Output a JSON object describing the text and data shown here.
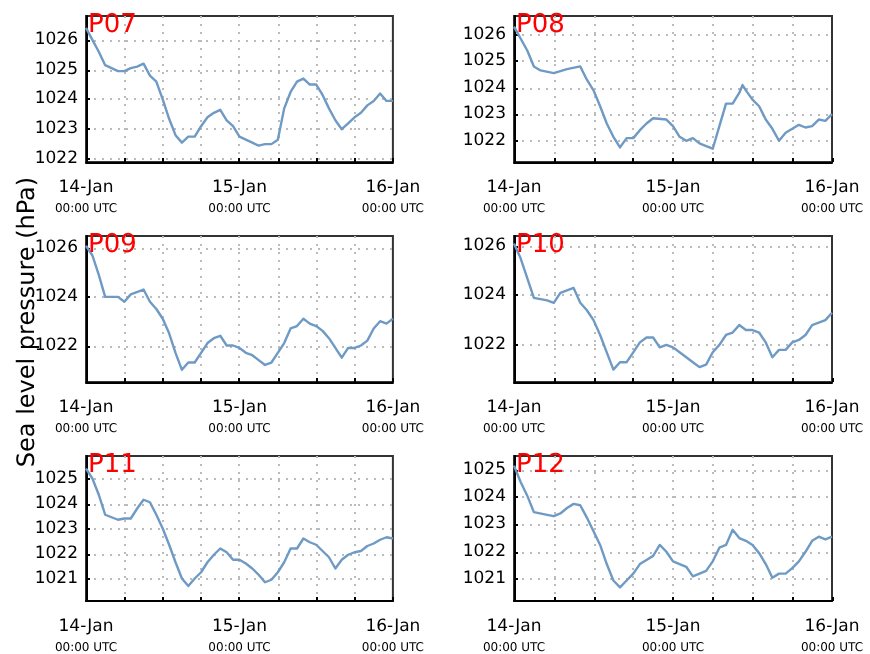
{
  "chart_data": [
    {
      "type": "line",
      "title": "P07",
      "grid": true,
      "line_style": "solid",
      "x": [
        "--01-14T00:00",
        "--01-14T01:00",
        "--01-14T02:00",
        "--01-14T03:00",
        "--01-14T05:00",
        "--01-14T06:00",
        "--01-14T07:00",
        "--01-14T08:00",
        "--01-14T09:00",
        "--01-14T10:00",
        "--01-14T11:00",
        "--01-14T12:00",
        "--01-14T13:00",
        "--01-14T14:00",
        "--01-14T15:00",
        "--01-14T16:00",
        "--01-14T17:00",
        "--01-14T18:00",
        "--01-14T19:00",
        "--01-14T20:00",
        "--01-14T21:00",
        "--01-14T22:00",
        "--01-14T23:00",
        "--01-15T00:00",
        "--01-15T01:00",
        "--01-15T02:00",
        "--01-15T03:00",
        "--01-15T04:00",
        "--01-15T05:00",
        "--01-15T06:00",
        "--01-15T07:00",
        "--01-15T08:00",
        "--01-15T09:00",
        "--01-15T10:00",
        "--01-15T11:00",
        "--01-15T12:00",
        "--01-15T13:00",
        "--01-15T14:00",
        "--01-15T15:00",
        "--01-15T16:00",
        "--01-15T17:00",
        "--01-15T18:00",
        "--01-15T19:00",
        "--01-15T20:00",
        "--01-15T21:00",
        "--01-15T22:00",
        "--01-15T23:00",
        "--01-16T00:00"
      ],
      "series": [
        {
          "color": "#6f9ac4",
          "values": [
            1026.4,
            1026.0,
            1025.6,
            1025.15,
            1024.95,
            1024.95,
            1025.05,
            1025.1,
            1025.2,
            1024.8,
            1024.6,
            1024.0,
            1023.35,
            1022.8,
            1022.55,
            1022.75,
            1022.75,
            1023.1,
            1023.4,
            1023.55,
            1023.65,
            1023.3,
            1023.1,
            1022.75,
            1022.65,
            1022.55,
            1022.45,
            1022.5,
            1022.5,
            1022.65,
            1023.7,
            1024.25,
            1024.6,
            1024.7,
            1024.5,
            1024.5,
            1024.15,
            1023.7,
            1023.3,
            1023.0,
            1023.2,
            1023.4,
            1023.55,
            1023.8,
            1023.95,
            1024.2,
            1023.95,
            1023.95
          ]
        }
      ],
      "xlim": [
        "--01-14T00:00",
        "--01-16T00:00"
      ],
      "xticks": [
        {
          "value": "--01-14T00:00",
          "label": "14-Jan\n00:00 UTC"
        },
        {
          "value": "--01-14T06:00",
          "label": null
        },
        {
          "value": "--01-14T12:00",
          "label": null
        },
        {
          "value": "--01-14T18:00",
          "label": null
        },
        {
          "value": "--01-15T00:00",
          "label": "15-Jan\n00:00 UTC"
        },
        {
          "value": "--01-15T06:00",
          "label": null
        },
        {
          "value": "--01-15T12:00",
          "label": null
        },
        {
          "value": "--01-15T18:00",
          "label": null
        },
        {
          "value": "--01-16T00:00",
          "label": "16-Jan\n00:00 UTC"
        }
      ],
      "ylim": [
        1021.9,
        1026.8
      ],
      "yticks": [
        1022,
        1023,
        1024,
        1025,
        1026
      ]
    },
    {
      "type": "line",
      "title": "P08",
      "grid": true,
      "line_style": "solid",
      "x": [
        "--01-14T00:00",
        "--01-14T02:00",
        "--01-14T03:00",
        "--01-14T04:00",
        "--01-14T06:00",
        "--01-14T08:00",
        "--01-14T10:00",
        "--01-14T11:00",
        "--01-14T12:00",
        "--01-14T13:00",
        "--01-14T14:00",
        "--01-14T15:00",
        "--01-14T16:00",
        "--01-14T17:00",
        "--01-14T18:00",
        "--01-14T19:00",
        "--01-14T20:00",
        "--01-14T21:00",
        "--01-14T23:00",
        "--01-15T00:00",
        "--01-15T01:00",
        "--01-15T02:00",
        "--01-15T03:00",
        "--01-15T04:00",
        "--01-15T05:00",
        "--01-15T06:00",
        "--01-15T07:00",
        "--01-15T08:00",
        "--01-15T09:00",
        "--01-15T10:00",
        "--01-15T10:30",
        "--01-15T11:00",
        "--01-15T12:00",
        "--01-15T13:00",
        "--01-15T14:00",
        "--01-15T15:00",
        "--01-15T16:00",
        "--01-15T17:00",
        "--01-15T18:00",
        "--01-15T19:00",
        "--01-15T20:00",
        "--01-15T21:00",
        "--01-15T22:00",
        "--01-15T23:00",
        "--01-16T00:00"
      ],
      "series": [
        {
          "color": "#6f9ac4",
          "values": [
            1026.3,
            1025.4,
            1024.8,
            1024.65,
            1024.55,
            1024.7,
            1024.8,
            1024.3,
            1023.9,
            1023.3,
            1022.65,
            1022.15,
            1021.75,
            1022.1,
            1022.1,
            1022.4,
            1022.65,
            1022.85,
            1022.8,
            1022.55,
            1022.15,
            1022.0,
            1022.1,
            1021.9,
            1021.8,
            1021.7,
            1022.55,
            1023.4,
            1023.4,
            1023.8,
            1024.1,
            1023.9,
            1023.55,
            1023.3,
            1022.8,
            1022.45,
            1022.0,
            1022.3,
            1022.45,
            1022.6,
            1022.5,
            1022.55,
            1022.8,
            1022.75,
            1023.0
          ]
        }
      ],
      "xlim": [
        "--01-14T00:00",
        "--01-16T00:00"
      ],
      "xticks": [
        {
          "value": "--01-14T00:00",
          "label": "14-Jan\n00:00 UTC"
        },
        {
          "value": "--01-14T06:00",
          "label": null
        },
        {
          "value": "--01-14T12:00",
          "label": null
        },
        {
          "value": "--01-14T18:00",
          "label": null
        },
        {
          "value": "--01-15T00:00",
          "label": "15-Jan\n00:00 UTC"
        },
        {
          "value": "--01-15T06:00",
          "label": null
        },
        {
          "value": "--01-15T12:00",
          "label": null
        },
        {
          "value": "--01-15T18:00",
          "label": null
        },
        {
          "value": "--01-16T00:00",
          "label": "16-Jan\n00:00 UTC"
        }
      ],
      "ylim": [
        1021.2,
        1026.7
      ],
      "yticks": [
        1022,
        1023,
        1024,
        1025,
        1026
      ]
    },
    {
      "type": "line",
      "title": "P09",
      "ylabel": "Sea level pressure (hPa)",
      "grid": true,
      "line_style": "solid",
      "x": [
        "--01-14T00:00",
        "--01-14T01:00",
        "--01-14T02:00",
        "--01-14T03:00",
        "--01-14T05:00",
        "--01-14T06:00",
        "--01-14T07:00",
        "--01-14T09:00",
        "--01-14T10:00",
        "--01-14T11:00",
        "--01-14T12:00",
        "--01-14T13:00",
        "--01-14T14:00",
        "--01-14T15:00",
        "--01-14T16:00",
        "--01-14T17:00",
        "--01-14T18:00",
        "--01-14T19:00",
        "--01-14T20:00",
        "--01-14T21:00",
        "--01-14T22:00",
        "--01-14T23:00",
        "--01-15T00:00",
        "--01-15T01:00",
        "--01-15T02:00",
        "--01-15T03:00",
        "--01-15T04:00",
        "--01-15T05:00",
        "--01-15T06:00",
        "--01-15T07:00",
        "--01-15T08:00",
        "--01-15T09:00",
        "--01-15T10:00",
        "--01-15T11:00",
        "--01-15T12:00",
        "--01-15T13:00",
        "--01-15T14:00",
        "--01-15T15:00",
        "--01-15T16:00",
        "--01-15T17:00",
        "--01-15T18:00",
        "--01-15T19:00",
        "--01-15T20:00",
        "--01-15T21:00",
        "--01-15T22:00",
        "--01-15T23:00",
        "--01-16T00:00"
      ],
      "series": [
        {
          "color": "#6f9ac4",
          "values": [
            1026.1,
            1025.7,
            1024.9,
            1024.0,
            1024.0,
            1023.8,
            1024.1,
            1024.3,
            1023.8,
            1023.5,
            1023.1,
            1022.5,
            1021.7,
            1021.0,
            1021.3,
            1021.3,
            1021.7,
            1022.1,
            1022.3,
            1022.4,
            1022.0,
            1022.0,
            1021.9,
            1021.7,
            1021.6,
            1021.4,
            1021.2,
            1021.3,
            1021.7,
            1022.1,
            1022.7,
            1022.8,
            1023.1,
            1022.9,
            1022.8,
            1022.6,
            1022.3,
            1021.9,
            1021.5,
            1021.9,
            1021.9,
            1022.0,
            1022.2,
            1022.7,
            1023.0,
            1022.9,
            1023.1
          ]
        }
      ],
      "xlim": [
        "--01-14T00:00",
        "--01-16T00:00"
      ],
      "xticks": [
        {
          "value": "--01-14T00:00",
          "label": "14-Jan\n00:00 UTC"
        },
        {
          "value": "--01-14T06:00",
          "label": null
        },
        {
          "value": "--01-14T12:00",
          "label": null
        },
        {
          "value": "--01-14T18:00",
          "label": null
        },
        {
          "value": "--01-15T00:00",
          "label": "15-Jan\n00:00 UTC"
        },
        {
          "value": "--01-15T06:00",
          "label": null
        },
        {
          "value": "--01-15T12:00",
          "label": null
        },
        {
          "value": "--01-15T18:00",
          "label": null
        },
        {
          "value": "--01-16T00:00",
          "label": "16-Jan\n00:00 UTC"
        }
      ],
      "ylim": [
        1020.5,
        1026.5
      ],
      "yticks": [
        1022,
        1024,
        1026
      ]
    },
    {
      "type": "line",
      "title": "P10",
      "grid": true,
      "line_style": "solid",
      "x": [
        "--01-14T00:00",
        "--01-14T01:00",
        "--01-14T02:00",
        "--01-14T03:00",
        "--01-14T05:00",
        "--01-14T06:00",
        "--01-14T07:00",
        "--01-14T09:00",
        "--01-14T10:00",
        "--01-14T11:00",
        "--01-14T12:00",
        "--01-14T13:00",
        "--01-14T14:00",
        "--01-14T15:00",
        "--01-14T16:00",
        "--01-14T17:00",
        "--01-14T18:00",
        "--01-14T19:00",
        "--01-14T20:00",
        "--01-14T21:00",
        "--01-14T22:00",
        "--01-14T23:00",
        "--01-15T00:00",
        "--01-15T01:00",
        "--01-15T02:00",
        "--01-15T03:00",
        "--01-15T04:00",
        "--01-15T05:00",
        "--01-15T06:00",
        "--01-15T07:00",
        "--01-15T08:00",
        "--01-15T09:00",
        "--01-15T10:00",
        "--01-15T11:00",
        "--01-15T12:00",
        "--01-15T13:00",
        "--01-15T14:00",
        "--01-15T15:00",
        "--01-15T16:00",
        "--01-15T17:00",
        "--01-15T18:00",
        "--01-15T19:00",
        "--01-15T20:00",
        "--01-15T21:00",
        "--01-15T22:00",
        "--01-15T23:00",
        "--01-16T00:00"
      ],
      "series": [
        {
          "color": "#6f9ac4",
          "values": [
            1026.1,
            1025.5,
            1024.7,
            1023.9,
            1023.8,
            1023.7,
            1024.1,
            1024.3,
            1023.7,
            1023.4,
            1023.0,
            1022.4,
            1021.7,
            1021.0,
            1021.3,
            1021.3,
            1021.7,
            1022.1,
            1022.3,
            1022.3,
            1021.9,
            1022.0,
            1021.9,
            1021.7,
            1021.5,
            1021.3,
            1021.1,
            1021.2,
            1021.7,
            1022.0,
            1022.4,
            1022.5,
            1022.8,
            1022.6,
            1022.6,
            1022.5,
            1022.1,
            1021.5,
            1021.8,
            1021.8,
            1022.1,
            1022.2,
            1022.4,
            1022.8,
            1022.9,
            1023.0,
            1023.3
          ]
        }
      ],
      "xlim": [
        "--01-14T00:00",
        "--01-16T00:00"
      ],
      "xticks": [
        {
          "value": "--01-14T00:00",
          "label": "14-Jan\n00:00 UTC"
        },
        {
          "value": "--01-14T06:00",
          "label": null
        },
        {
          "value": "--01-14T12:00",
          "label": null
        },
        {
          "value": "--01-14T18:00",
          "label": null
        },
        {
          "value": "--01-15T00:00",
          "label": "15-Jan\n00:00 UTC"
        },
        {
          "value": "--01-15T06:00",
          "label": null
        },
        {
          "value": "--01-15T12:00",
          "label": null
        },
        {
          "value": "--01-15T18:00",
          "label": null
        },
        {
          "value": "--01-16T00:00",
          "label": "16-Jan\n00:00 UTC"
        }
      ],
      "ylim": [
        1020.5,
        1026.4
      ],
      "yticks": [
        1022,
        1024,
        1026
      ]
    },
    {
      "type": "line",
      "title": "P11",
      "grid": true,
      "line_style": "solid",
      "x": [
        "--01-14T00:00",
        "--01-14T01:00",
        "--01-14T02:00",
        "--01-14T03:00",
        "--01-14T04:00",
        "--01-14T05:00",
        "--01-14T06:00",
        "--01-14T07:00",
        "--01-14T08:00",
        "--01-14T09:00",
        "--01-14T10:00",
        "--01-14T11:00",
        "--01-14T12:00",
        "--01-14T13:00",
        "--01-14T14:00",
        "--01-14T15:00",
        "--01-14T16:00",
        "--01-14T17:00",
        "--01-14T18:00",
        "--01-14T19:00",
        "--01-14T20:00",
        "--01-14T21:00",
        "--01-14T22:00",
        "--01-14T23:00",
        "--01-15T00:00",
        "--01-15T01:00",
        "--01-15T02:00",
        "--01-15T03:00",
        "--01-15T04:00",
        "--01-15T05:00",
        "--01-15T06:00",
        "--01-15T07:00",
        "--01-15T08:00",
        "--01-15T09:00",
        "--01-15T10:00",
        "--01-15T11:00",
        "--01-15T12:00",
        "--01-15T13:00",
        "--01-15T14:00",
        "--01-15T15:00",
        "--01-15T16:00",
        "--01-15T17:00",
        "--01-15T18:00",
        "--01-15T19:00",
        "--01-15T20:00",
        "--01-15T21:00",
        "--01-15T22:00",
        "--01-15T23:00",
        "--01-16T00:00"
      ],
      "series": [
        {
          "color": "#6f9ac4",
          "values": [
            1025.4,
            1025.0,
            1024.35,
            1023.55,
            1023.45,
            1023.35,
            1023.4,
            1023.4,
            1023.8,
            1024.15,
            1024.05,
            1023.55,
            1023.0,
            1022.35,
            1021.65,
            1021.0,
            1020.7,
            1021.0,
            1021.25,
            1021.65,
            1021.95,
            1022.2,
            1022.05,
            1021.75,
            1021.75,
            1021.6,
            1021.4,
            1021.15,
            1020.85,
            1020.95,
            1021.25,
            1021.65,
            1022.2,
            1022.2,
            1022.6,
            1022.45,
            1022.35,
            1022.1,
            1021.85,
            1021.4,
            1021.75,
            1021.95,
            1022.05,
            1022.1,
            1022.3,
            1022.4,
            1022.55,
            1022.65,
            1022.6
          ]
        }
      ],
      "xlim": [
        "--01-14T00:00",
        "--01-16T00:00"
      ],
      "xticks": [
        {
          "value": "--01-14T00:00",
          "label": "14-Jan\n00:00 UTC"
        },
        {
          "value": "--01-14T06:00",
          "label": null
        },
        {
          "value": "--01-14T12:00",
          "label": null
        },
        {
          "value": "--01-14T18:00",
          "label": null
        },
        {
          "value": "--01-15T00:00",
          "label": "15-Jan\n00:00 UTC"
        },
        {
          "value": "--01-15T06:00",
          "label": null
        },
        {
          "value": "--01-15T12:00",
          "label": null
        },
        {
          "value": "--01-15T18:00",
          "label": null
        },
        {
          "value": "--01-16T00:00",
          "label": "16-Jan\n00:00 UTC"
        }
      ],
      "ylim": [
        1020.1,
        1025.9
      ],
      "yticks": [
        1021,
        1022,
        1023,
        1024,
        1025
      ]
    },
    {
      "type": "line",
      "title": "P12",
      "grid": true,
      "line_style": "solid",
      "x": [
        "--01-14T00:00",
        "--01-14T01:00",
        "--01-14T02:00",
        "--01-14T03:00",
        "--01-14T05:00",
        "--01-14T06:00",
        "--01-14T07:00",
        "--01-14T08:00",
        "--01-14T09:00",
        "--01-14T10:00",
        "--01-14T11:00",
        "--01-14T12:00",
        "--01-14T13:00",
        "--01-14T14:00",
        "--01-14T15:00",
        "--01-14T16:00",
        "--01-14T17:00",
        "--01-14T18:00",
        "--01-14T19:00",
        "--01-14T20:00",
        "--01-14T21:00",
        "--01-14T22:00",
        "--01-14T23:00",
        "--01-15T00:00",
        "--01-15T01:00",
        "--01-15T02:00",
        "--01-15T03:00",
        "--01-15T04:00",
        "--01-15T05:00",
        "--01-15T06:00",
        "--01-15T07:00",
        "--01-15T08:00",
        "--01-15T09:00",
        "--01-15T10:00",
        "--01-15T11:00",
        "--01-15T12:00",
        "--01-15T13:00",
        "--01-15T14:00",
        "--01-15T15:00",
        "--01-15T16:00",
        "--01-15T17:00",
        "--01-15T18:00",
        "--01-15T19:00",
        "--01-15T20:00",
        "--01-15T21:00",
        "--01-15T22:00",
        "--01-15T23:00",
        "--01-16T00:00"
      ],
      "series": [
        {
          "color": "#6f9ac4",
          "values": [
            1025.15,
            1024.55,
            1024.05,
            1023.45,
            1023.35,
            1023.3,
            1023.4,
            1023.6,
            1023.75,
            1023.7,
            1023.25,
            1022.75,
            1022.25,
            1021.55,
            1020.95,
            1020.7,
            1020.95,
            1021.2,
            1021.55,
            1021.7,
            1021.85,
            1022.25,
            1022.0,
            1021.65,
            1021.55,
            1021.45,
            1021.1,
            1021.2,
            1021.3,
            1021.65,
            1022.15,
            1022.25,
            1022.8,
            1022.5,
            1022.4,
            1022.25,
            1021.95,
            1021.55,
            1021.05,
            1021.2,
            1021.2,
            1021.4,
            1021.65,
            1022.0,
            1022.4,
            1022.55,
            1022.45,
            1022.55
          ]
        }
      ],
      "xlim": [
        "--01-14T00:00",
        "--01-16T00:00"
      ],
      "xticks": [
        {
          "value": "--01-14T00:00",
          "label": "14-Jan\n00:00 UTC"
        },
        {
          "value": "--01-14T06:00",
          "label": null
        },
        {
          "value": "--01-14T12:00",
          "label": null
        },
        {
          "value": "--01-14T18:00",
          "label": null
        },
        {
          "value": "--01-15T00:00",
          "label": "15-Jan\n00:00 UTC"
        },
        {
          "value": "--01-15T06:00",
          "label": null
        },
        {
          "value": "--01-15T12:00",
          "label": null
        },
        {
          "value": "--01-15T18:00",
          "label": null
        },
        {
          "value": "--01-16T00:00",
          "label": "16-Jan\n00:00 UTC"
        }
      ],
      "ylim": [
        1020.2,
        1025.5
      ],
      "yticks": [
        1021,
        1022,
        1023,
        1024,
        1025
      ]
    }
  ]
}
